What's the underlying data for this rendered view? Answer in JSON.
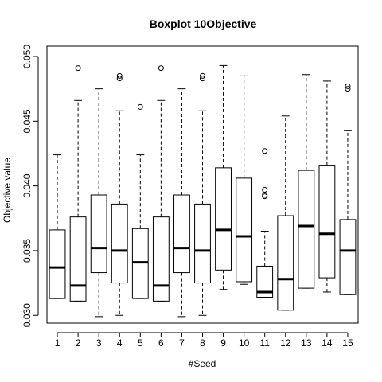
{
  "chart_data": {
    "type": "boxplot",
    "title": "Boxplot 10Objective",
    "xlabel": "#Seed",
    "ylabel": "Objective value",
    "categories": [
      "1",
      "2",
      "3",
      "4",
      "5",
      "6",
      "7",
      "8",
      "9",
      "10",
      "11",
      "12",
      "13",
      "14",
      "15"
    ],
    "ylim": [
      0.0294,
      0.0508
    ],
    "yticks": [
      0.03,
      0.035,
      0.04,
      0.045,
      0.05
    ],
    "ytick_labels": [
      "0.030",
      "0.035",
      "0.040",
      "0.045",
      "0.050"
    ],
    "grid": false,
    "legend": "none",
    "boxes": [
      {
        "label": "1",
        "whisker_low": 0.0313,
        "q1": 0.0313,
        "median": 0.0337,
        "q3": 0.0366,
        "whisker_high": 0.0424,
        "outliers": []
      },
      {
        "label": "2",
        "whisker_low": 0.0311,
        "q1": 0.0311,
        "median": 0.0323,
        "q3": 0.0376,
        "whisker_high": 0.0466,
        "outliers": [
          0.0491
        ]
      },
      {
        "label": "3",
        "whisker_low": 0.0299,
        "q1": 0.0333,
        "median": 0.0352,
        "q3": 0.0393,
        "whisker_high": 0.0475,
        "outliers": []
      },
      {
        "label": "4",
        "whisker_low": 0.03,
        "q1": 0.0325,
        "median": 0.035,
        "q3": 0.0386,
        "whisker_high": 0.0458,
        "outliers": [
          0.0483,
          0.0485
        ]
      },
      {
        "label": "5",
        "whisker_low": 0.0313,
        "q1": 0.0313,
        "median": 0.0341,
        "q3": 0.0367,
        "whisker_high": 0.0424,
        "outliers": [
          0.0461
        ]
      },
      {
        "label": "6",
        "whisker_low": 0.0311,
        "q1": 0.0311,
        "median": 0.0323,
        "q3": 0.0376,
        "whisker_high": 0.0466,
        "outliers": [
          0.0491
        ]
      },
      {
        "label": "7",
        "whisker_low": 0.0299,
        "q1": 0.0333,
        "median": 0.0352,
        "q3": 0.0393,
        "whisker_high": 0.0475,
        "outliers": []
      },
      {
        "label": "8",
        "whisker_low": 0.03,
        "q1": 0.0325,
        "median": 0.035,
        "q3": 0.0386,
        "whisker_high": 0.0458,
        "outliers": [
          0.0483,
          0.0485
        ]
      },
      {
        "label": "9",
        "whisker_low": 0.032,
        "q1": 0.0335,
        "median": 0.0366,
        "q3": 0.0414,
        "whisker_high": 0.0493,
        "outliers": []
      },
      {
        "label": "10",
        "whisker_low": 0.0324,
        "q1": 0.0326,
        "median": 0.0361,
        "q3": 0.0406,
        "whisker_high": 0.0485,
        "outliers": []
      },
      {
        "label": "11",
        "whisker_low": 0.0314,
        "q1": 0.0314,
        "median": 0.0318,
        "q3": 0.0338,
        "whisker_high": 0.0365,
        "outliers": [
          0.0392,
          0.0393,
          0.0397,
          0.0427
        ]
      },
      {
        "label": "12",
        "whisker_low": 0.0304,
        "q1": 0.0304,
        "median": 0.0328,
        "q3": 0.0377,
        "whisker_high": 0.0454,
        "outliers": []
      },
      {
        "label": "13",
        "whisker_low": 0.0321,
        "q1": 0.0321,
        "median": 0.0369,
        "q3": 0.0412,
        "whisker_high": 0.0486,
        "outliers": []
      },
      {
        "label": "14",
        "whisker_low": 0.0318,
        "q1": 0.0329,
        "median": 0.0363,
        "q3": 0.0416,
        "whisker_high": 0.0481,
        "outliers": []
      },
      {
        "label": "15",
        "whisker_low": 0.0316,
        "q1": 0.0316,
        "median": 0.035,
        "q3": 0.0374,
        "whisker_high": 0.0443,
        "outliers": [
          0.0475,
          0.0477
        ]
      }
    ]
  }
}
